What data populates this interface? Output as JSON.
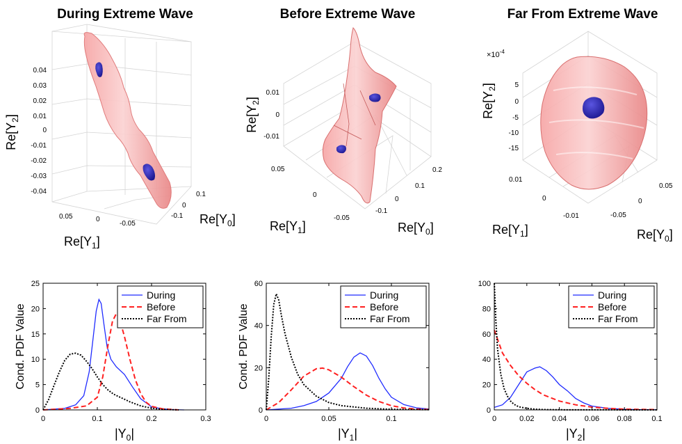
{
  "surface_panels": [
    {
      "title": "During Extreme Wave",
      "z_label": "Re[Y",
      "z_sub": "2",
      "z_label_end": "]",
      "x_label": "Re[Y",
      "x_sub": "0",
      "x_label_end": "]",
      "y_label": "Re[Y",
      "y_sub": "1",
      "y_label_end": "]",
      "z_ticks": [
        "0.04",
        "0.03",
        "0.02",
        "0.01",
        "0",
        "-0.01",
        "-0.02",
        "-0.03",
        "-0.04"
      ],
      "x_ticks": [
        "0.1",
        "0",
        "-0.1"
      ],
      "y_ticks": [
        "0.05",
        "0",
        "-0.05"
      ],
      "exponent": "",
      "colors": {
        "outer": "#f08a8a",
        "inner": "#2a1fa8"
      }
    },
    {
      "title": "Before Extreme Wave",
      "z_label": "Re[Y",
      "z_sub": "2",
      "z_label_end": "]",
      "x_label": "Re[Y",
      "x_sub": "0",
      "x_label_end": "]",
      "y_label": "Re[Y",
      "y_sub": "1",
      "y_label_end": "]",
      "z_ticks": [
        "0.01",
        "0",
        "-0.01"
      ],
      "x_ticks": [
        "0.2",
        "0.1",
        "0",
        "-0.1"
      ],
      "y_ticks": [
        "0.05",
        "0",
        "-0.05"
      ],
      "exponent": "",
      "colors": {
        "outer": "#f08a8a",
        "inner": "#2a1fa8"
      }
    },
    {
      "title": "Far From Extreme Wave",
      "z_label": "Re[Y",
      "z_sub": "2",
      "z_label_end": "]",
      "x_label": "Re[Y",
      "x_sub": "0",
      "x_label_end": "]",
      "y_label": "Re[Y",
      "y_sub": "1",
      "y_label_end": "]",
      "z_ticks": [
        "5",
        "0",
        "-5",
        "-10",
        "-15"
      ],
      "x_ticks": [
        "0.05",
        "0",
        "-0.05"
      ],
      "y_ticks": [
        "0.01",
        "0",
        "-0.01"
      ],
      "exponent": "×10",
      "exponent_power": "-4",
      "colors": {
        "outer": "#f08a8a",
        "inner": "#2a1fa8"
      }
    }
  ],
  "chart_data": [
    {
      "type": "line",
      "ylabel": "Cond. PDF Value",
      "xlabel": "|Y",
      "xlabel_sub": "0",
      "xlabel_end": "|",
      "xlim": [
        0,
        0.3
      ],
      "ylim": [
        0,
        25
      ],
      "xticks": [
        0,
        0.1,
        0.2,
        0.3
      ],
      "xtick_labels": [
        "0",
        "0.1",
        "0.2",
        "0.3"
      ],
      "yticks": [
        0,
        5,
        10,
        15,
        20,
        25
      ],
      "ytick_labels": [
        "0",
        "5",
        "10",
        "15",
        "20",
        "25"
      ],
      "legend": "top-right",
      "series": [
        {
          "name": "During",
          "color": "#1f2bff",
          "style": "solid",
          "x": [
            0,
            0.04,
            0.06,
            0.075,
            0.085,
            0.092,
            0.098,
            0.103,
            0.107,
            0.112,
            0.118,
            0.125,
            0.135,
            0.15,
            0.165,
            0.18,
            0.2,
            0.22,
            0.24,
            0.26
          ],
          "y": [
            0,
            0.3,
            1.0,
            2.8,
            7.5,
            14.0,
            19.5,
            21.8,
            21.0,
            17.0,
            12.5,
            10.0,
            8.5,
            7.0,
            4.5,
            2.2,
            0.6,
            0.2,
            0.05,
            0
          ]
        },
        {
          "name": "Before",
          "color": "#ff2020",
          "style": "dashed",
          "x": [
            0,
            0.05,
            0.08,
            0.1,
            0.11,
            0.12,
            0.128,
            0.135,
            0.14,
            0.15,
            0.16,
            0.17,
            0.18,
            0.19,
            0.2,
            0.22,
            0.25
          ],
          "y": [
            0,
            0.3,
            0.8,
            2.5,
            6.5,
            13.0,
            17.5,
            19.0,
            18.3,
            14.5,
            10.0,
            6.0,
            3.2,
            1.5,
            0.7,
            0.2,
            0
          ]
        },
        {
          "name": "Far From",
          "color": "#000000",
          "style": "dotted",
          "x": [
            0,
            0.01,
            0.02,
            0.03,
            0.04,
            0.05,
            0.06,
            0.07,
            0.08,
            0.09,
            0.1,
            0.11,
            0.12,
            0.13,
            0.14,
            0.15,
            0.16,
            0.17,
            0.18,
            0.2,
            0.22,
            0.25
          ],
          "y": [
            0,
            2.0,
            4.8,
            7.5,
            9.8,
            11.0,
            11.2,
            10.8,
            9.6,
            8.2,
            6.5,
            5.0,
            3.9,
            3.1,
            2.6,
            2.1,
            1.6,
            1.2,
            0.8,
            0.35,
            0.1,
            0
          ]
        }
      ]
    },
    {
      "type": "line",
      "ylabel": "Cond. PDF Value",
      "xlabel": "|Y",
      "xlabel_sub": "1",
      "xlabel_end": "|",
      "xlim": [
        0,
        0.13
      ],
      "ylim": [
        0,
        60
      ],
      "xticks": [
        0,
        0.05,
        0.1
      ],
      "xtick_labels": [
        "0",
        "0.05",
        "0.1"
      ],
      "yticks": [
        0,
        20,
        40,
        60
      ],
      "ytick_labels": [
        "0",
        "20",
        "40",
        "60"
      ],
      "legend": "top-right",
      "series": [
        {
          "name": "During",
          "color": "#1f2bff",
          "style": "solid",
          "x": [
            0,
            0.02,
            0.03,
            0.04,
            0.05,
            0.06,
            0.065,
            0.07,
            0.075,
            0.08,
            0.085,
            0.09,
            0.095,
            0.1,
            0.11,
            0.12,
            0.13
          ],
          "y": [
            0,
            0.8,
            2.0,
            4.0,
            8.0,
            15.0,
            20.5,
            25.0,
            27.0,
            25.5,
            21.0,
            15.0,
            10.0,
            6.0,
            2.5,
            1.0,
            0.4
          ]
        },
        {
          "name": "Before",
          "color": "#ff2020",
          "style": "dashed",
          "x": [
            0,
            0.01,
            0.02,
            0.03,
            0.04,
            0.045,
            0.05,
            0.06,
            0.07,
            0.08,
            0.09,
            0.1,
            0.11,
            0.12,
            0.13
          ],
          "y": [
            0,
            3.5,
            9.5,
            16.0,
            19.5,
            19.8,
            19.0,
            15.5,
            11.0,
            7.0,
            4.0,
            2.0,
            0.9,
            0.4,
            0.2
          ]
        },
        {
          "name": "Far From",
          "color": "#000000",
          "style": "dotted",
          "x": [
            0,
            0.002,
            0.004,
            0.006,
            0.008,
            0.01,
            0.012,
            0.015,
            0.02,
            0.025,
            0.03,
            0.04,
            0.05,
            0.06,
            0.08,
            0.1,
            0.13
          ],
          "y": [
            0,
            15.0,
            35.0,
            50.0,
            55.0,
            52.0,
            45.0,
            36.0,
            25.0,
            17.0,
            12.0,
            6.5,
            3.5,
            2.0,
            0.8,
            0.3,
            0.1
          ]
        }
      ]
    },
    {
      "type": "line",
      "ylabel": "",
      "xlabel": "|Y",
      "xlabel_sub": "2",
      "xlabel_end": "|",
      "xlim": [
        0,
        0.1
      ],
      "ylim": [
        0,
        100
      ],
      "xticks": [
        0,
        0.02,
        0.04,
        0.06,
        0.08,
        0.1
      ],
      "xtick_labels": [
        "0",
        "0.02",
        "0.04",
        "0.06",
        "0.08",
        "0.1"
      ],
      "yticks": [
        0,
        20,
        40,
        60,
        80,
        100
      ],
      "ytick_labels": [
        "0",
        "20",
        "40",
        "60",
        "80",
        "100"
      ],
      "legend": "top-right",
      "series": [
        {
          "name": "During",
          "color": "#1f2bff",
          "style": "solid",
          "x": [
            0,
            0.005,
            0.01,
            0.015,
            0.02,
            0.025,
            0.028,
            0.032,
            0.036,
            0.04,
            0.045,
            0.05,
            0.055,
            0.06,
            0.07,
            0.08,
            0.09,
            0.1
          ],
          "y": [
            2.0,
            4.0,
            10.0,
            20.0,
            30.0,
            33.0,
            34.0,
            31.0,
            26.0,
            20.0,
            15.0,
            9.0,
            5.5,
            3.0,
            1.2,
            0.5,
            0.2,
            0.1
          ]
        },
        {
          "name": "Before",
          "color": "#ff2020",
          "style": "dashed",
          "x": [
            0,
            0.005,
            0.01,
            0.015,
            0.02,
            0.025,
            0.03,
            0.04,
            0.05,
            0.06,
            0.07,
            0.08,
            0.1
          ],
          "y": [
            63.0,
            45.0,
            35.0,
            27.0,
            21.0,
            16.0,
            12.0,
            7.0,
            4.0,
            2.2,
            1.2,
            0.6,
            0.2
          ]
        },
        {
          "name": "Far From",
          "color": "#000000",
          "style": "dotted",
          "x": [
            0,
            0.001,
            0.002,
            0.004,
            0.006,
            0.008,
            0.01,
            0.012,
            0.015,
            0.02,
            0.025,
            0.03,
            0.04,
            0.06,
            0.1
          ],
          "y": [
            100.0,
            70.0,
            48.0,
            28.0,
            17.0,
            11.0,
            7.0,
            4.5,
            2.5,
            1.2,
            0.6,
            0.3,
            0.1,
            0.05,
            0
          ]
        }
      ]
    }
  ]
}
